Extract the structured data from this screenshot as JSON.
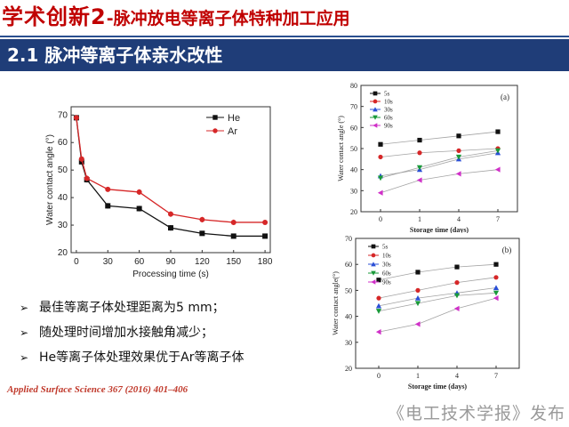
{
  "slide": {
    "title_main": "学术创新2",
    "title_sub": "-脉冲放电等离子体特种加工应用",
    "section": "2.1 脉冲等离子体亲水改性",
    "bullets": [
      "最佳等离子体处理距离为5 mm；",
      "随处理时间增加水接触角减少；",
      "He等离子体处理效果优于Ar等离子体"
    ],
    "bullet_marker": "➢",
    "source": "Applied Surface Science 367 (2016) 401–406",
    "publisher": "《电工技术学报》发布"
  },
  "chart_data": [
    {
      "id": "main",
      "type": "line",
      "title": "",
      "xlabel": "Processing time (s)",
      "ylabel": "Water contact angle (°)",
      "x": [
        0,
        5,
        10,
        30,
        60,
        90,
        120,
        150,
        180
      ],
      "xticks": [
        0,
        30,
        60,
        90,
        120,
        150,
        180
      ],
      "yticks": [
        20,
        30,
        40,
        50,
        60,
        70
      ],
      "xlim": [
        -5,
        185
      ],
      "ylim": [
        20,
        73
      ],
      "legend": "top-right",
      "series": [
        {
          "name": "He",
          "color": "#111111",
          "marker": "square",
          "values": [
            69,
            53,
            46.5,
            37,
            36,
            29,
            27,
            26,
            26
          ],
          "err": [
            1,
            1,
            1,
            1,
            1,
            1,
            0.8,
            0.8,
            0.8
          ]
        },
        {
          "name": "Ar",
          "color": "#d62728",
          "marker": "circle",
          "values": [
            69,
            54,
            47,
            43,
            42,
            34,
            32,
            31,
            31
          ],
          "err": [
            1,
            1,
            1,
            0.8,
            1,
            1,
            1,
            1,
            0.8
          ]
        }
      ]
    },
    {
      "id": "a",
      "type": "line",
      "title": "(a)",
      "xlabel": "Storage time (days)",
      "ylabel": "Water contact angle (°)",
      "categories": [
        "0",
        "1",
        "4",
        "7"
      ],
      "yticks": [
        20,
        30,
        40,
        50,
        60,
        70,
        80
      ],
      "ylim": [
        20,
        80
      ],
      "legend": "top-left",
      "series": [
        {
          "name": "5s",
          "color": "#111111",
          "marker": "square",
          "values": [
            52,
            54,
            56,
            58
          ]
        },
        {
          "name": "10s",
          "color": "#d62728",
          "marker": "circle",
          "values": [
            46,
            48,
            49,
            50
          ]
        },
        {
          "name": "30s",
          "color": "#2a4fd6",
          "marker": "triangle-up",
          "values": [
            37,
            40,
            45,
            48
          ]
        },
        {
          "name": "60s",
          "color": "#1a9a3a",
          "marker": "triangle-down",
          "values": [
            36,
            41,
            46,
            49
          ]
        },
        {
          "name": "90s",
          "color": "#d030c8",
          "marker": "triangle-left",
          "values": [
            29,
            35,
            38,
            40
          ]
        }
      ]
    },
    {
      "id": "b",
      "type": "line",
      "title": "(b)",
      "xlabel": "Storage time (days)",
      "ylabel": "Water contact angle(°)",
      "categories": [
        "0",
        "1",
        "4",
        "7"
      ],
      "yticks": [
        20,
        30,
        40,
        50,
        60,
        70
      ],
      "ylim": [
        20,
        70
      ],
      "legend": "top-left",
      "series": [
        {
          "name": "5s",
          "color": "#111111",
          "marker": "square",
          "values": [
            54,
            57,
            59,
            60
          ]
        },
        {
          "name": "10s",
          "color": "#d62728",
          "marker": "circle",
          "values": [
            47,
            50,
            53,
            55
          ]
        },
        {
          "name": "30s",
          "color": "#2a4fd6",
          "marker": "triangle-up",
          "values": [
            44,
            47,
            49,
            51
          ]
        },
        {
          "name": "60s",
          "color": "#1a9a3a",
          "marker": "triangle-down",
          "values": [
            42,
            45,
            48,
            49
          ]
        },
        {
          "name": "90s",
          "color": "#d030c8",
          "marker": "triangle-left",
          "values": [
            34,
            37,
            43,
            47
          ]
        }
      ]
    }
  ]
}
